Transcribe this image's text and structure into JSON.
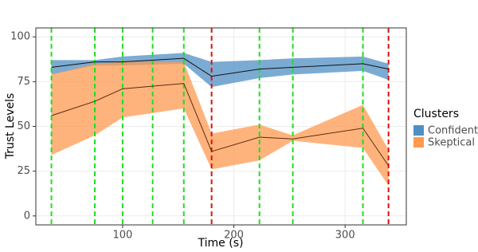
{
  "chart_data": {
    "type": "ribbon-line",
    "x": [
      36,
      75,
      100,
      155,
      180,
      223,
      253,
      316,
      339
    ],
    "series": [
      {
        "name": "Confident",
        "color": "#4f8fc4",
        "values": [
          83,
          86,
          86,
          88,
          78,
          82,
          83,
          85,
          82
        ],
        "lower": [
          79,
          84,
          84,
          85,
          72,
          77,
          79,
          81,
          76
        ],
        "upper": [
          87,
          87,
          89,
          91,
          86,
          87,
          88,
          89,
          85
        ]
      },
      {
        "name": "Skeptical",
        "color": "#ff9a50",
        "values": [
          56,
          64,
          71,
          74,
          36,
          44,
          43,
          49,
          28
        ],
        "lower": [
          34,
          45,
          55,
          60,
          26,
          31,
          42,
          38,
          17
        ],
        "upper": [
          79,
          85,
          86,
          86,
          46,
          51,
          45,
          62,
          37
        ]
      }
    ],
    "events": [
      {
        "x": 36,
        "color": "#22dd22"
      },
      {
        "x": 75,
        "color": "#22dd22"
      },
      {
        "x": 100,
        "color": "#22dd22"
      },
      {
        "x": 127,
        "color": "#22dd22"
      },
      {
        "x": 155,
        "color": "#22dd22"
      },
      {
        "x": 180,
        "color": "#dd1111"
      },
      {
        "x": 223,
        "color": "#22dd22"
      },
      {
        "x": 253,
        "color": "#22dd22"
      },
      {
        "x": 316,
        "color": "#22dd22"
      },
      {
        "x": 339,
        "color": "#dd1111"
      }
    ],
    "xlabel": "Time (s)",
    "ylabel": "Trust Levels",
    "legend_title": "Clusters",
    "xlim": [
      22,
      355
    ],
    "ylim": [
      -5,
      105
    ],
    "xticks": [
      100,
      200,
      300
    ],
    "yticks": [
      0,
      25,
      50,
      75,
      100
    ],
    "grid": true,
    "legend_position": "right"
  }
}
